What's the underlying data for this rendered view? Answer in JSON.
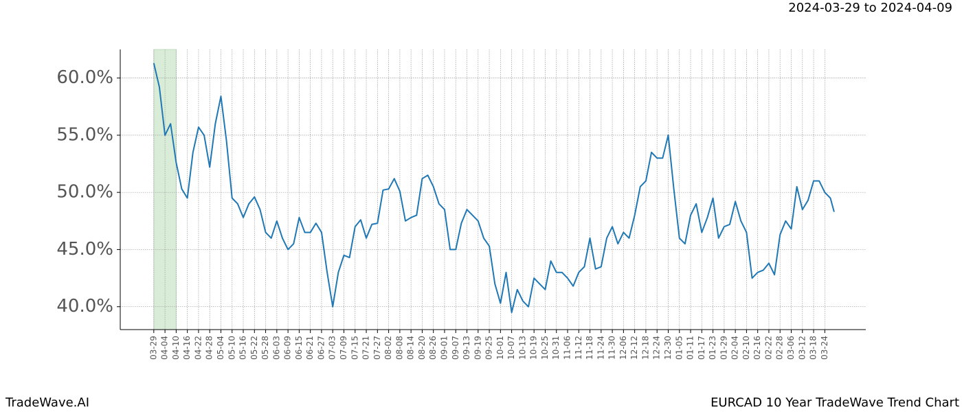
{
  "chart_data": {
    "type": "line",
    "title": "EURCAD 10 Year TradeWave Trend Chart",
    "subtitle": "2024-03-29 to 2024-04-09",
    "brand": "TradeWave.AI",
    "color": "#1f77b4",
    "highlight_color": "#d8ecd8",
    "highlight_range": [
      0,
      12
    ],
    "grid": true,
    "x": [
      0,
      3,
      6,
      9,
      12,
      15,
      18,
      21,
      24,
      27,
      30,
      33,
      36,
      39,
      42,
      45,
      48,
      51,
      54,
      57,
      60,
      63,
      66,
      69,
      72,
      75,
      78,
      81,
      84,
      87,
      90,
      93,
      96,
      99,
      102,
      105,
      108,
      111,
      114,
      117,
      120,
      123,
      126,
      129,
      132,
      135,
      138,
      141,
      144,
      147,
      150,
      153,
      156,
      159,
      162,
      165,
      168,
      171,
      174,
      177,
      180,
      183,
      186,
      189,
      192,
      195,
      198,
      201,
      204,
      207,
      210,
      213,
      216,
      219,
      222,
      225,
      228,
      231,
      234,
      237,
      240,
      243,
      246,
      249,
      252,
      255,
      258,
      261,
      264,
      267,
      270,
      273,
      276,
      279,
      282,
      285,
      288,
      291,
      294,
      297,
      300,
      303,
      306,
      309,
      312,
      315,
      318,
      321,
      324,
      327,
      330,
      333,
      336,
      339,
      342,
      345,
      348,
      351,
      354,
      357,
      360,
      363,
      365
    ],
    "values": [
      61.3,
      59.2,
      55,
      56,
      52.6,
      50.3,
      49.5,
      53.5,
      55.7,
      55,
      52.2,
      56,
      58.4,
      54.5,
      49.5,
      49,
      47.8,
      49,
      49.6,
      48.5,
      46.5,
      46,
      47.5,
      46,
      45,
      45.5,
      47.8,
      46.5,
      46.5,
      47.3,
      46.5,
      43,
      40,
      43,
      44.5,
      44.3,
      47,
      47.6,
      46,
      47.2,
      47.3,
      50.2,
      50.3,
      51.2,
      50.1,
      47.5,
      47.8,
      48,
      51.2,
      51.5,
      50.5,
      49,
      48.5,
      45,
      45,
      47.3,
      48.5,
      48,
      47.5,
      46,
      45.3,
      42,
      40.3,
      43,
      39.5,
      41.5,
      40.5,
      40,
      42.5,
      42,
      41.5,
      44,
      43,
      43,
      42.5,
      41.8,
      43,
      43.5,
      46,
      43.3,
      43.5,
      46,
      47,
      45.5,
      46.5,
      46,
      48,
      50.5,
      51,
      53.5,
      53,
      53,
      55,
      50.3,
      46,
      45.5,
      48,
      49,
      46.5,
      47.8,
      49.5,
      46,
      47,
      47.2,
      49.2,
      47.5,
      46.5,
      42.5,
      43,
      43.2,
      43.8,
      42.8,
      46.3,
      47.5,
      46.8,
      50.5,
      48.5,
      49.3,
      51,
      51,
      50,
      49.5,
      48.3
    ],
    "xlim": [
      -18,
      382
    ],
    "ylim": [
      38,
      62.5
    ],
    "yticks": [
      {
        "value": 40,
        "label": "40.0%"
      },
      {
        "value": 45,
        "label": "45.0%"
      },
      {
        "value": 50,
        "label": "50.0%"
      },
      {
        "value": 55,
        "label": "55.0%"
      },
      {
        "value": 60,
        "label": "60.0%"
      }
    ],
    "xticks": [
      {
        "value": 0,
        "label": "03-29"
      },
      {
        "value": 6,
        "label": "04-04"
      },
      {
        "value": 12,
        "label": "04-10"
      },
      {
        "value": 18,
        "label": "04-16"
      },
      {
        "value": 24,
        "label": "04-22"
      },
      {
        "value": 30,
        "label": "04-28"
      },
      {
        "value": 36,
        "label": "05-04"
      },
      {
        "value": 42,
        "label": "05-10"
      },
      {
        "value": 48,
        "label": "05-16"
      },
      {
        "value": 54,
        "label": "05-22"
      },
      {
        "value": 60,
        "label": "05-28"
      },
      {
        "value": 66,
        "label": "06-03"
      },
      {
        "value": 72,
        "label": "06-09"
      },
      {
        "value": 78,
        "label": "06-15"
      },
      {
        "value": 84,
        "label": "06-21"
      },
      {
        "value": 90,
        "label": "06-27"
      },
      {
        "value": 96,
        "label": "07-03"
      },
      {
        "value": 102,
        "label": "07-09"
      },
      {
        "value": 108,
        "label": "07-15"
      },
      {
        "value": 114,
        "label": "07-21"
      },
      {
        "value": 120,
        "label": "07-27"
      },
      {
        "value": 126,
        "label": "08-02"
      },
      {
        "value": 132,
        "label": "08-08"
      },
      {
        "value": 138,
        "label": "08-14"
      },
      {
        "value": 144,
        "label": "08-20"
      },
      {
        "value": 150,
        "label": "08-26"
      },
      {
        "value": 156,
        "label": "09-01"
      },
      {
        "value": 162,
        "label": "09-07"
      },
      {
        "value": 168,
        "label": "09-13"
      },
      {
        "value": 174,
        "label": "09-19"
      },
      {
        "value": 180,
        "label": "09-25"
      },
      {
        "value": 186,
        "label": "10-01"
      },
      {
        "value": 192,
        "label": "10-07"
      },
      {
        "value": 198,
        "label": "10-13"
      },
      {
        "value": 204,
        "label": "10-19"
      },
      {
        "value": 210,
        "label": "10-25"
      },
      {
        "value": 216,
        "label": "10-31"
      },
      {
        "value": 222,
        "label": "11-06"
      },
      {
        "value": 228,
        "label": "11-12"
      },
      {
        "value": 234,
        "label": "11-18"
      },
      {
        "value": 240,
        "label": "11-24"
      },
      {
        "value": 246,
        "label": "11-30"
      },
      {
        "value": 252,
        "label": "12-06"
      },
      {
        "value": 258,
        "label": "12-12"
      },
      {
        "value": 264,
        "label": "12-18"
      },
      {
        "value": 270,
        "label": "12-24"
      },
      {
        "value": 276,
        "label": "12-30"
      },
      {
        "value": 282,
        "label": "01-05"
      },
      {
        "value": 288,
        "label": "01-11"
      },
      {
        "value": 294,
        "label": "01-17"
      },
      {
        "value": 300,
        "label": "01-23"
      },
      {
        "value": 306,
        "label": "01-29"
      },
      {
        "value": 312,
        "label": "02-04"
      },
      {
        "value": 318,
        "label": "02-10"
      },
      {
        "value": 324,
        "label": "02-16"
      },
      {
        "value": 330,
        "label": "02-22"
      },
      {
        "value": 336,
        "label": "02-28"
      },
      {
        "value": 342,
        "label": "03-06"
      },
      {
        "value": 348,
        "label": "03-12"
      },
      {
        "value": 354,
        "label": "03-18"
      },
      {
        "value": 360,
        "label": "03-24"
      }
    ]
  }
}
